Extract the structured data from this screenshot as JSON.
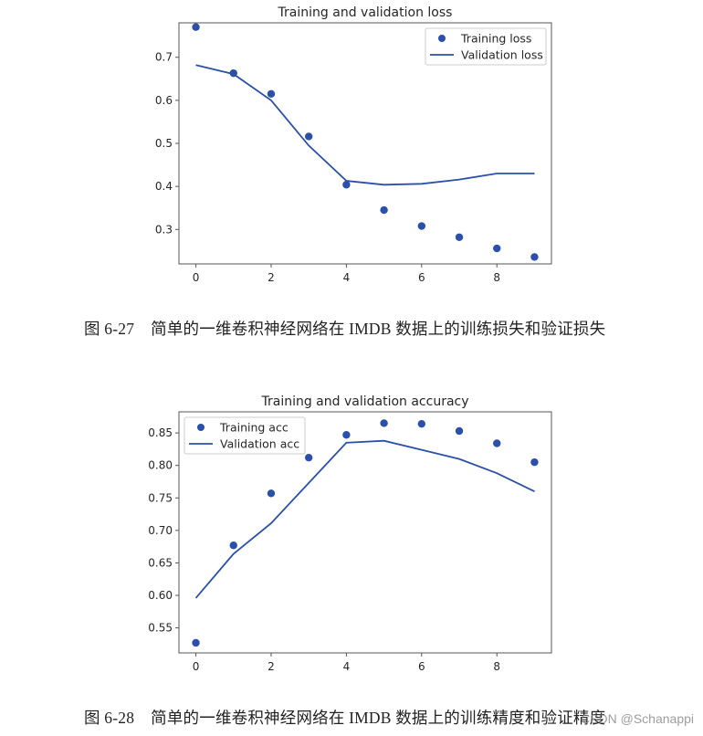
{
  "figures": [
    {
      "caption_number": "图 6-27",
      "caption_text": "简单的一维卷积神经网络在 IMDB 数据上的训练损失和验证损失"
    },
    {
      "caption_number": "图 6-28",
      "caption_text": "简单的一维卷积神经网络在 IMDB 数据上的训练精度和验证精度"
    }
  ],
  "watermark": "CSDN @Schanappi",
  "colors": {
    "series": "#2b50aa",
    "axis": "#555555",
    "text": "#262626",
    "legend_border": "#cccccc"
  },
  "chart_data": [
    {
      "type": "line",
      "title": "Training and validation loss",
      "xlabel": "",
      "ylabel": "",
      "x": [
        0,
        1,
        2,
        3,
        4,
        5,
        6,
        7,
        8,
        9
      ],
      "xticks": [
        0,
        2,
        4,
        6,
        8
      ],
      "yticks": [
        0.3,
        0.4,
        0.5,
        0.6,
        0.7
      ],
      "ytick_labels": [
        "0.3",
        "0.4",
        "0.5",
        "0.6",
        "0.7"
      ],
      "xlim": [
        -0.45,
        9.45
      ],
      "ylim": [
        0.22,
        0.78
      ],
      "grid": false,
      "legend_position": "upper right",
      "series": [
        {
          "name": "Training loss",
          "style": "markers",
          "values": [
            0.77,
            0.663,
            0.615,
            0.516,
            0.404,
            0.345,
            0.308,
            0.282,
            0.256,
            0.236
          ]
        },
        {
          "name": "Validation loss",
          "style": "line",
          "values": [
            0.682,
            0.661,
            0.6,
            0.495,
            0.413,
            0.404,
            0.406,
            0.416,
            0.43,
            0.43
          ]
        }
      ]
    },
    {
      "type": "line",
      "title": "Training and validation accuracy",
      "xlabel": "",
      "ylabel": "",
      "x": [
        0,
        1,
        2,
        3,
        4,
        5,
        6,
        7,
        8,
        9
      ],
      "xticks": [
        0,
        2,
        4,
        6,
        8
      ],
      "yticks": [
        0.55,
        0.6,
        0.65,
        0.7,
        0.75,
        0.8,
        0.85
      ],
      "ytick_labels": [
        "0.55",
        "0.60",
        "0.65",
        "0.70",
        "0.75",
        "0.80",
        "0.85"
      ],
      "xlim": [
        -0.45,
        9.45
      ],
      "ylim": [
        0.5115,
        0.8825
      ],
      "grid": false,
      "legend_position": "upper left",
      "series": [
        {
          "name": "Training acc",
          "style": "markers",
          "values": [
            0.527,
            0.677,
            0.757,
            0.812,
            0.847,
            0.865,
            0.864,
            0.853,
            0.834,
            0.805
          ]
        },
        {
          "name": "Validation acc",
          "style": "line",
          "values": [
            0.596,
            0.664,
            0.711,
            0.773,
            0.835,
            0.838,
            0.824,
            0.81,
            0.788,
            0.76
          ]
        }
      ]
    }
  ]
}
